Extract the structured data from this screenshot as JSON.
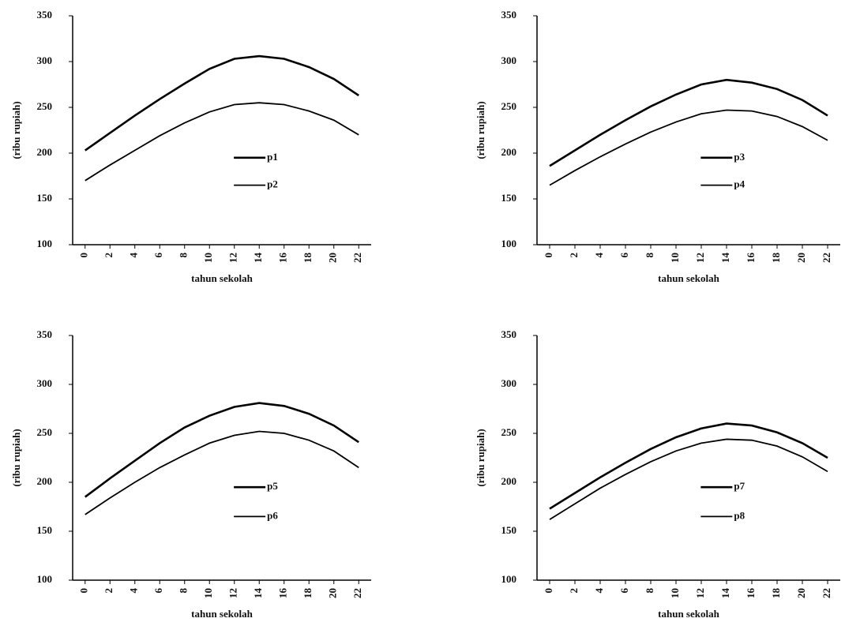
{
  "chart_data": [
    {
      "type": "line",
      "x_label": "tahun sekolah",
      "y_label": "(ribu rupiah)",
      "x": [
        0,
        2,
        4,
        6,
        8,
        10,
        12,
        14,
        16,
        18,
        20,
        22
      ],
      "series": [
        {
          "name": "p1",
          "color": "#000000",
          "values": [
            203,
            222,
            241,
            259,
            276,
            292,
            303,
            306,
            303,
            294,
            281,
            263
          ]
        },
        {
          "name": "p2",
          "color": "#000000",
          "values": [
            170,
            187,
            203,
            219,
            233,
            245,
            253,
            255,
            253,
            246,
            236,
            220
          ]
        }
      ],
      "xlim": [
        -1,
        23
      ],
      "xticks": [
        0,
        2,
        4,
        6,
        8,
        10,
        12,
        14,
        16,
        18,
        20,
        22
      ],
      "ylim": [
        100,
        350
      ],
      "yticks": [
        100,
        150,
        200,
        250,
        300,
        350
      ]
    },
    {
      "type": "line",
      "x_label": "tahun sekolah",
      "y_label": "(ribu rupiah)",
      "x": [
        0,
        2,
        4,
        6,
        8,
        10,
        12,
        14,
        16,
        18,
        20,
        22
      ],
      "series": [
        {
          "name": "p3",
          "color": "#000000",
          "values": [
            186,
            203,
            220,
            236,
            251,
            264,
            275,
            280,
            277,
            270,
            258,
            241
          ]
        },
        {
          "name": "p4",
          "color": "#000000",
          "values": [
            165,
            181,
            196,
            210,
            223,
            234,
            243,
            247,
            246,
            240,
            229,
            214
          ]
        }
      ],
      "xlim": [
        -1,
        23
      ],
      "xticks": [
        0,
        2,
        4,
        6,
        8,
        10,
        12,
        14,
        16,
        18,
        20,
        22
      ],
      "ylim": [
        100,
        350
      ],
      "yticks": [
        100,
        150,
        200,
        250,
        300,
        350
      ]
    },
    {
      "type": "line",
      "x_label": "tahun sekolah",
      "y_label": "(ribu rupiah)",
      "x": [
        0,
        2,
        4,
        6,
        8,
        10,
        12,
        14,
        16,
        18,
        20,
        22
      ],
      "series": [
        {
          "name": "p5",
          "color": "#000000",
          "values": [
            185,
            204,
            222,
            240,
            256,
            268,
            277,
            281,
            278,
            270,
            258,
            241
          ]
        },
        {
          "name": "p6",
          "color": "#000000",
          "values": [
            167,
            184,
            200,
            215,
            228,
            240,
            248,
            252,
            250,
            243,
            232,
            215
          ]
        }
      ],
      "xlim": [
        -1,
        23
      ],
      "xticks": [
        0,
        2,
        4,
        6,
        8,
        10,
        12,
        14,
        16,
        18,
        20,
        22
      ],
      "ylim": [
        100,
        350
      ],
      "yticks": [
        100,
        150,
        200,
        250,
        300,
        350
      ]
    },
    {
      "type": "line",
      "x_label": "tahun sekolah",
      "y_label": "(ribu rupiah)",
      "x": [
        0,
        2,
        4,
        6,
        8,
        10,
        12,
        14,
        16,
        18,
        20,
        22
      ],
      "series": [
        {
          "name": "p7",
          "color": "#000000",
          "values": [
            173,
            189,
            205,
            220,
            234,
            246,
            255,
            260,
            258,
            251,
            240,
            225
          ]
        },
        {
          "name": "p8",
          "color": "#000000",
          "values": [
            162,
            178,
            194,
            208,
            221,
            232,
            240,
            244,
            243,
            237,
            226,
            211
          ]
        }
      ],
      "xlim": [
        -1,
        23
      ],
      "xticks": [
        0,
        2,
        4,
        6,
        8,
        10,
        12,
        14,
        16,
        18,
        20,
        22
      ],
      "ylim": [
        100,
        350
      ],
      "yticks": [
        100,
        150,
        200,
        250,
        300,
        350
      ]
    }
  ]
}
